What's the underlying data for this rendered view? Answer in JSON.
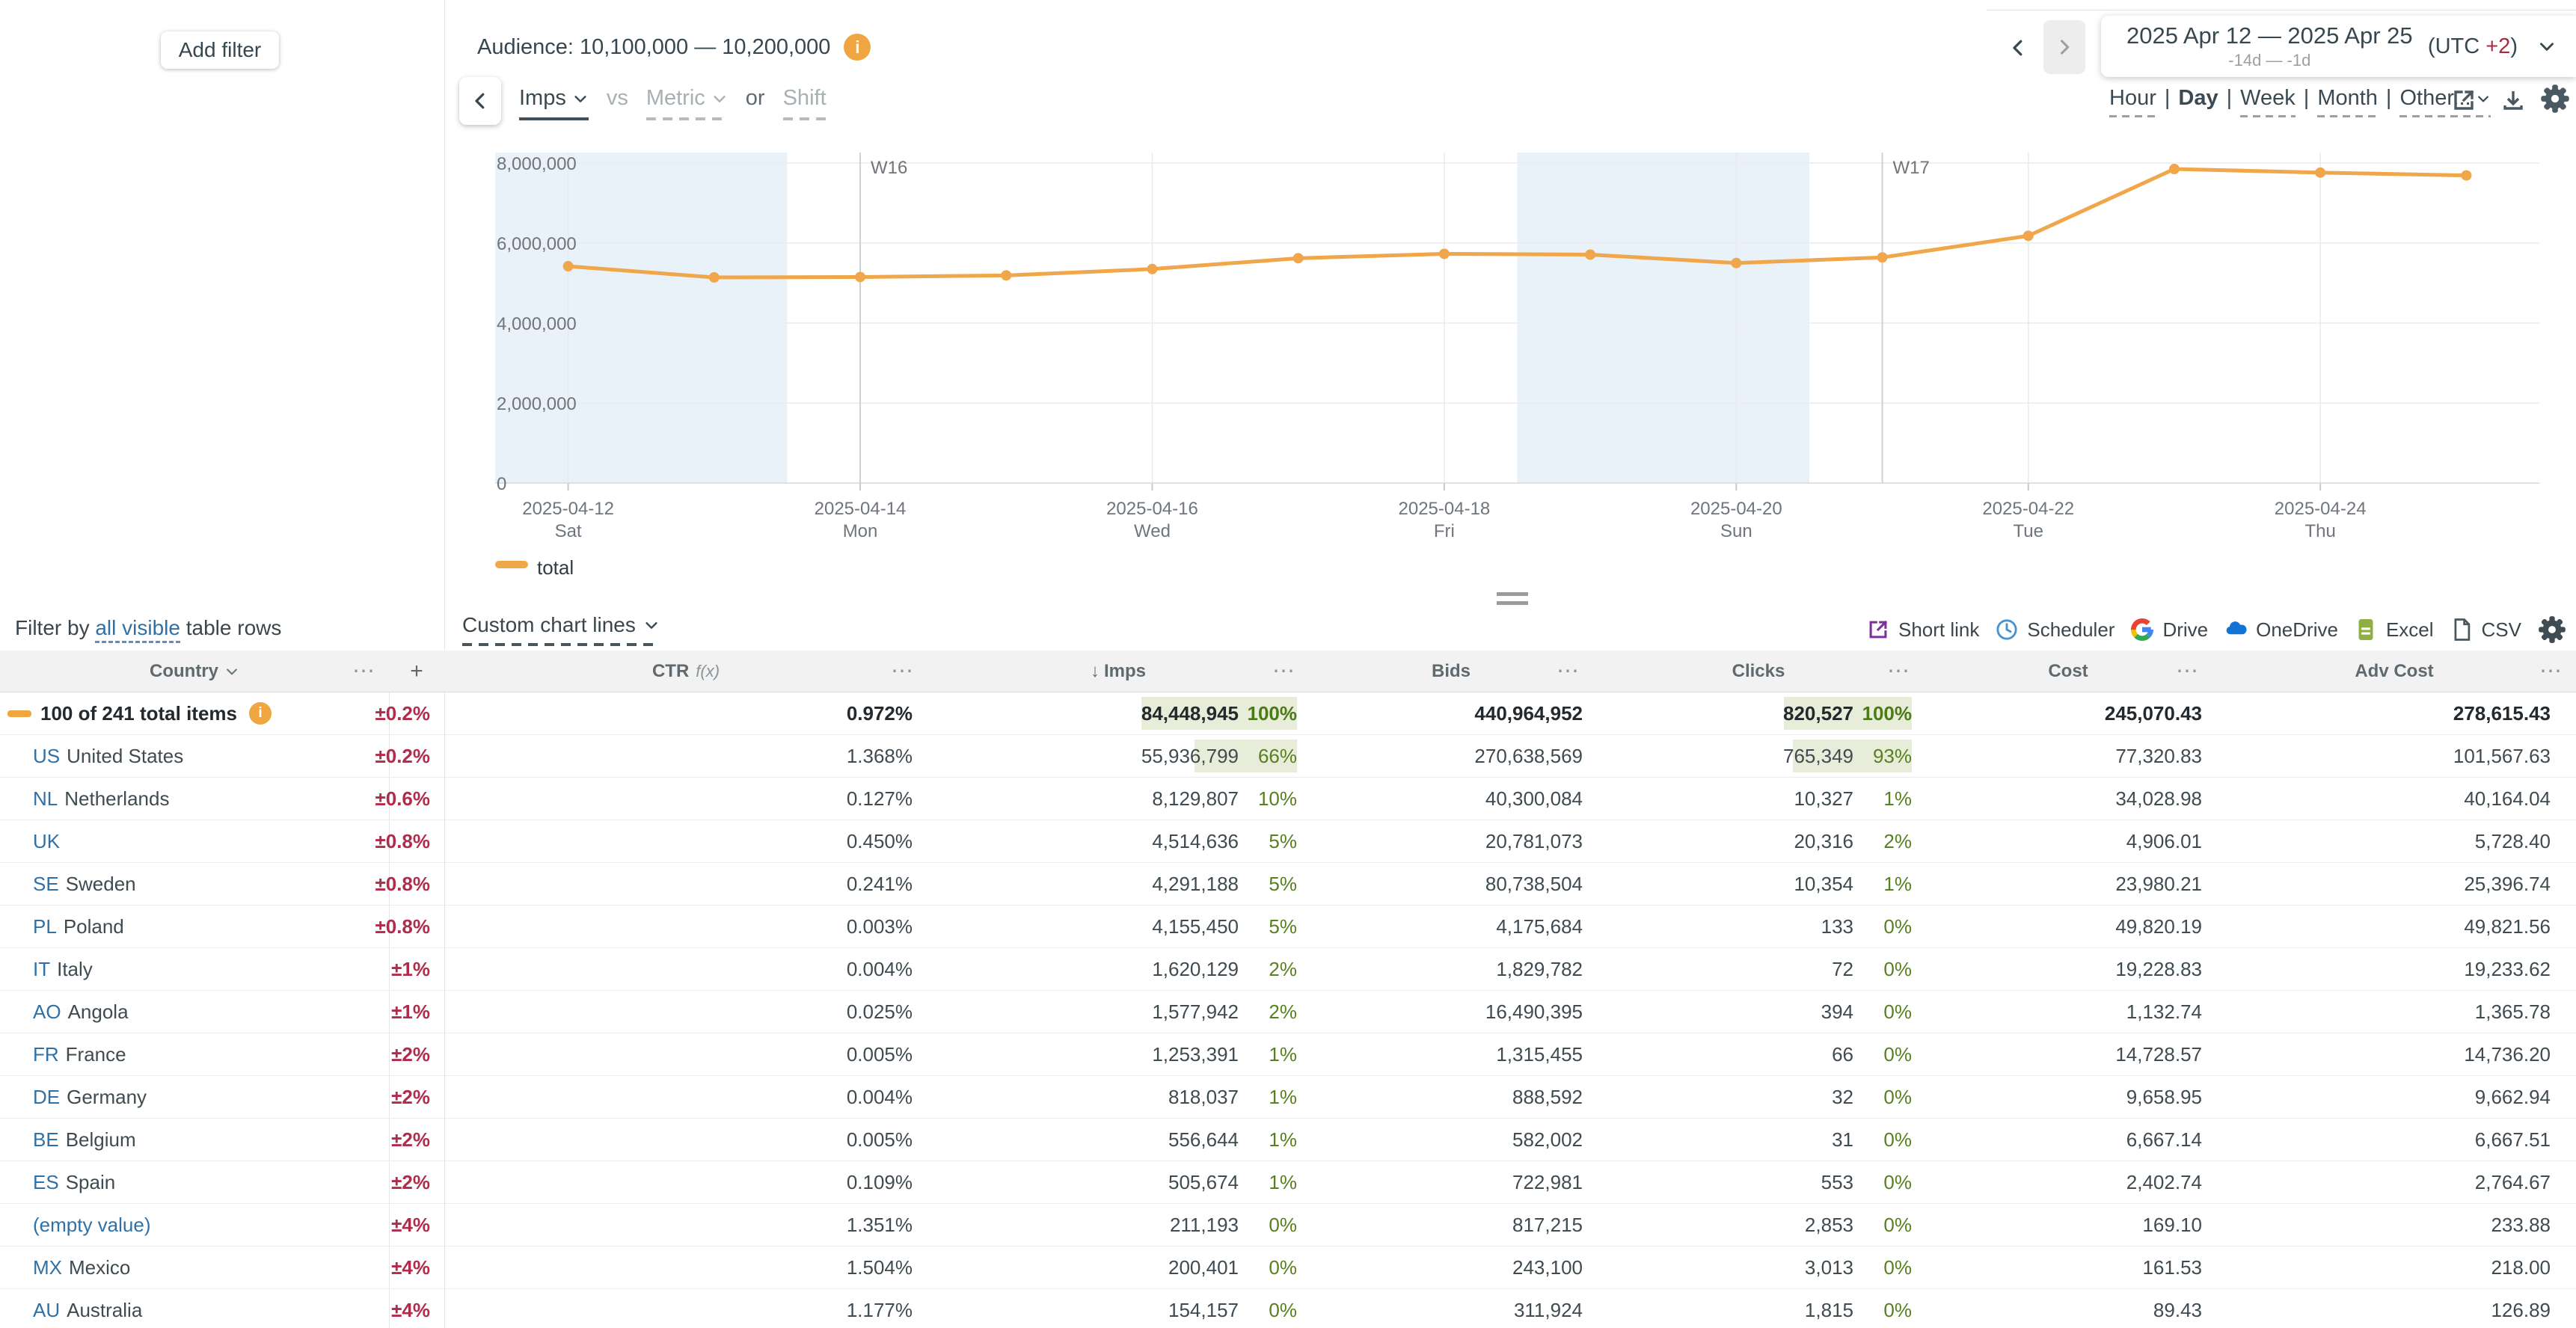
{
  "colors": {
    "accent_orange": "#f0a64a",
    "crimson_delta": "#b12b4a",
    "link_blue": "#2f71a7",
    "green_pct": "#57801e",
    "green_bar": "#e8edd9",
    "weekend_band": "#e9f1f9"
  },
  "left_panel": {
    "add_filter_label": "Add filter",
    "filter_by": {
      "prefix": "Filter by ",
      "link": "all visible",
      "suffix": " table rows"
    }
  },
  "toolbar": {
    "audience_label": "Audience: 10,100,000 — 10,200,000",
    "date_nav": {
      "range": "2025 Apr 12 — 2025 Apr 25",
      "relative_range": "-14d — -1d",
      "utc_prefix": "(UTC ",
      "utc_offset": "+2",
      "utc_suffix": ")"
    },
    "metric_picker": {
      "selected": "Imps",
      "vs_label": "vs",
      "metric_placeholder": "Metric",
      "or_label": "or",
      "shift_label": "Shift"
    },
    "granularity": {
      "options": [
        "Hour",
        "Day",
        "Week",
        "Month",
        "Other..."
      ],
      "selected": "Day"
    }
  },
  "chart_links": {
    "custom_chart_lines": "Custom chart lines"
  },
  "export_bar": {
    "items": [
      "Short link",
      "Scheduler",
      "Drive",
      "OneDrive",
      "Excel",
      "CSV"
    ]
  },
  "chart_data": {
    "type": "line",
    "x": [
      "2025-04-12",
      "2025-04-13",
      "2025-04-14",
      "2025-04-15",
      "2025-04-16",
      "2025-04-17",
      "2025-04-18",
      "2025-04-19",
      "2025-04-20",
      "2025-04-21",
      "2025-04-22",
      "2025-04-23",
      "2025-04-24",
      "2025-04-25"
    ],
    "series": [
      {
        "name": "total",
        "color": "#f0a64a",
        "values": [
          5420000,
          5140000,
          5150000,
          5190000,
          5350000,
          5620000,
          5730000,
          5710000,
          5500000,
          5640000,
          6180000,
          7850000,
          7760000,
          7690000
        ]
      }
    ],
    "ylim": [
      0,
      8000000
    ],
    "yticks": [
      {
        "value": 0,
        "label": "0"
      },
      {
        "value": 2000000,
        "label": "2,000,000"
      },
      {
        "value": 4000000,
        "label": "4,000,000"
      },
      {
        "value": 6000000,
        "label": "6,000,000"
      },
      {
        "value": 8000000,
        "label": "8,000,000"
      }
    ],
    "x_tick_labels": [
      {
        "day_index": 0,
        "date": "2025-04-12",
        "weekday": "Sat"
      },
      {
        "day_index": 2,
        "date": "2025-04-14",
        "weekday": "Mon"
      },
      {
        "day_index": 4,
        "date": "2025-04-16",
        "weekday": "Wed"
      },
      {
        "day_index": 6,
        "date": "2025-04-18",
        "weekday": "Fri"
      },
      {
        "day_index": 8,
        "date": "2025-04-20",
        "weekday": "Sun"
      },
      {
        "day_index": 10,
        "date": "2025-04-22",
        "weekday": "Tue"
      },
      {
        "day_index": 12,
        "date": "2025-04-24",
        "weekday": "Thu"
      }
    ],
    "week_markers": [
      {
        "label": "W16",
        "day_index": 2
      },
      {
        "label": "W17",
        "day_index": 9
      }
    ],
    "weekend_bands": [
      {
        "from_day": 0,
        "to_day": 2
      },
      {
        "from_day": 7,
        "to_day": 9
      }
    ],
    "legend": [
      "total"
    ],
    "grid": true,
    "legend_position": "bottom-left"
  },
  "table": {
    "header": {
      "country": "Country",
      "add_column": "+",
      "menu_icon": "⋯",
      "ctr": "CTR",
      "ctr_fx": "f(x)",
      "imps_sort": "↓",
      "imps": "Imps",
      "bids": "Bids",
      "clicks": "Clicks",
      "cost": "Cost",
      "adv_cost": "Adv Cost"
    },
    "rows": [
      {
        "label": "100 of 241 total items",
        "info": true,
        "delta": "±0.2%",
        "ctr": "0.972%",
        "imps": "84,448,945",
        "imps_pct": 100,
        "bids": "440,964,952",
        "clicks": "820,527",
        "clicks_pct": 100,
        "cost": "245,070.43",
        "adv_cost": "278,615.43"
      },
      {
        "code": "US",
        "name": "United States",
        "delta": "±0.2%",
        "ctr": "1.368%",
        "imps": "55,936,799",
        "imps_pct": 66,
        "bids": "270,638,569",
        "clicks": "765,349",
        "clicks_pct": 93,
        "cost": "77,320.83",
        "adv_cost": "101,567.63"
      },
      {
        "code": "NL",
        "name": "Netherlands",
        "delta": "±0.6%",
        "ctr": "0.127%",
        "imps": "8,129,807",
        "imps_pct": 10,
        "bids": "40,300,084",
        "clicks": "10,327",
        "clicks_pct": 1,
        "cost": "34,028.98",
        "adv_cost": "40,164.04"
      },
      {
        "code": "UK",
        "name": "",
        "delta": "±0.8%",
        "ctr": "0.450%",
        "imps": "4,514,636",
        "imps_pct": 5,
        "bids": "20,781,073",
        "clicks": "20,316",
        "clicks_pct": 2,
        "cost": "4,906.01",
        "adv_cost": "5,728.40"
      },
      {
        "code": "SE",
        "name": "Sweden",
        "delta": "±0.8%",
        "ctr": "0.241%",
        "imps": "4,291,188",
        "imps_pct": 5,
        "bids": "80,738,504",
        "clicks": "10,354",
        "clicks_pct": 1,
        "cost": "23,980.21",
        "adv_cost": "25,396.74"
      },
      {
        "code": "PL",
        "name": "Poland",
        "delta": "±0.8%",
        "ctr": "0.003%",
        "imps": "4,155,450",
        "imps_pct": 5,
        "bids": "4,175,684",
        "clicks": "133",
        "clicks_pct": 0,
        "cost": "49,820.19",
        "adv_cost": "49,821.56"
      },
      {
        "code": "IT",
        "name": "Italy",
        "delta": "±1%",
        "ctr": "0.004%",
        "imps": "1,620,129",
        "imps_pct": 2,
        "bids": "1,829,782",
        "clicks": "72",
        "clicks_pct": 0,
        "cost": "19,228.83",
        "adv_cost": "19,233.62"
      },
      {
        "code": "AO",
        "name": "Angola",
        "delta": "±1%",
        "ctr": "0.025%",
        "imps": "1,577,942",
        "imps_pct": 2,
        "bids": "16,490,395",
        "clicks": "394",
        "clicks_pct": 0,
        "cost": "1,132.74",
        "adv_cost": "1,365.78"
      },
      {
        "code": "FR",
        "name": "France",
        "delta": "±2%",
        "ctr": "0.005%",
        "imps": "1,253,391",
        "imps_pct": 1,
        "bids": "1,315,455",
        "clicks": "66",
        "clicks_pct": 0,
        "cost": "14,728.57",
        "adv_cost": "14,736.20"
      },
      {
        "code": "DE",
        "name": "Germany",
        "delta": "±2%",
        "ctr": "0.004%",
        "imps": "818,037",
        "imps_pct": 1,
        "bids": "888,592",
        "clicks": "32",
        "clicks_pct": 0,
        "cost": "9,658.95",
        "adv_cost": "9,662.94"
      },
      {
        "code": "BE",
        "name": "Belgium",
        "delta": "±2%",
        "ctr": "0.005%",
        "imps": "556,644",
        "imps_pct": 1,
        "bids": "582,002",
        "clicks": "31",
        "clicks_pct": 0,
        "cost": "6,667.14",
        "adv_cost": "6,667.51"
      },
      {
        "code": "ES",
        "name": "Spain",
        "delta": "±2%",
        "ctr": "0.109%",
        "imps": "505,674",
        "imps_pct": 1,
        "bids": "722,981",
        "clicks": "553",
        "clicks_pct": 0,
        "cost": "2,402.74",
        "adv_cost": "2,764.67"
      },
      {
        "code": "",
        "name": "(empty value)",
        "delta": "±4%",
        "ctr": "1.351%",
        "imps": "211,193",
        "imps_pct": 0,
        "bids": "817,215",
        "clicks": "2,853",
        "clicks_pct": 0,
        "cost": "169.10",
        "adv_cost": "233.88"
      },
      {
        "code": "MX",
        "name": "Mexico",
        "delta": "±4%",
        "ctr": "1.504%",
        "imps": "200,401",
        "imps_pct": 0,
        "bids": "243,100",
        "clicks": "3,013",
        "clicks_pct": 0,
        "cost": "161.53",
        "adv_cost": "218.00"
      },
      {
        "code": "AU",
        "name": "Australia",
        "delta": "±4%",
        "ctr": "1.177%",
        "imps": "154,157",
        "imps_pct": 0,
        "bids": "311,924",
        "clicks": "1,815",
        "clicks_pct": 0,
        "cost": "89.43",
        "adv_cost": "126.89"
      }
    ]
  }
}
